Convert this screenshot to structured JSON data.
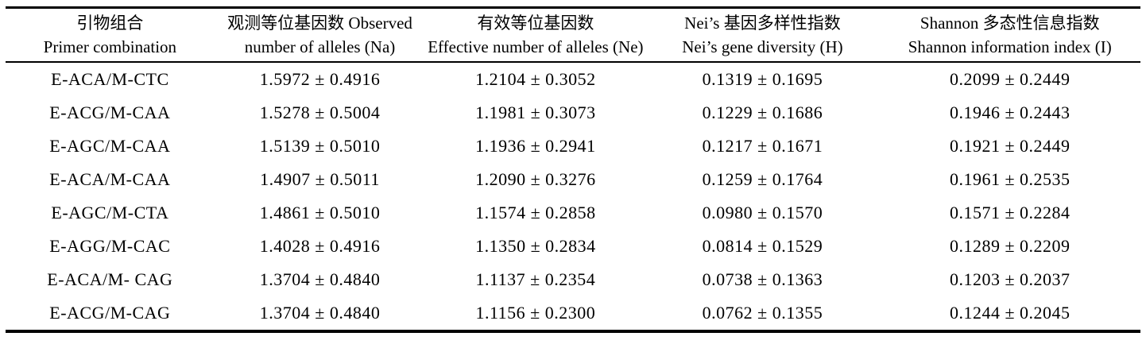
{
  "table": {
    "columns": [
      {
        "zh": "引物组合",
        "en": "Primer combination"
      },
      {
        "zh": "观测等位基因数 Observed",
        "en": "number of alleles (Na)"
      },
      {
        "zh": "有效等位基因数",
        "en": "Effective number of alleles (Ne)"
      },
      {
        "zh": "Nei’s 基因多样性指数",
        "en": "Nei’s gene diversity (H)"
      },
      {
        "zh": "Shannon 多态性信息指数",
        "en": "Shannon information index (I)"
      }
    ],
    "rows": [
      [
        "E-ACA/M-CTC",
        "1.5972 ± 0.4916",
        "1.2104 ± 0.3052",
        "0.1319 ± 0.1695",
        "0.2099 ± 0.2449"
      ],
      [
        "E-ACG/M-CAA",
        "1.5278 ± 0.5004",
        "1.1981 ± 0.3073",
        "0.1229 ± 0.1686",
        "0.1946 ± 0.2443"
      ],
      [
        "E-AGC/M-CAA",
        "1.5139 ± 0.5010",
        "1.1936 ± 0.2941",
        "0.1217 ± 0.1671",
        "0.1921 ± 0.2449"
      ],
      [
        "E-ACA/M-CAA",
        "1.4907 ± 0.5011",
        "1.2090 ± 0.3276",
        "0.1259 ± 0.1764",
        "0.1961 ± 0.2535"
      ],
      [
        "E-AGC/M-CTA",
        "1.4861 ± 0.5010",
        "1.1574 ± 0.2858",
        "0.0980 ± 0.1570",
        "0.1571 ± 0.2284"
      ],
      [
        "E-AGG/M-CAC",
        "1.4028 ± 0.4916",
        "1.1350 ± 0.2834",
        "0.0814 ± 0.1529",
        "0.1289 ± 0.2209"
      ],
      [
        "E-ACA/M- CAG",
        "1.3704 ± 0.4840",
        "1.1137 ± 0.2354",
        "0.0738 ± 0.1363",
        "0.1203 ± 0.2037"
      ],
      [
        "E-ACG/M-CAG",
        "1.3704 ± 0.4840",
        "1.1156 ± 0.2300",
        "0.0762 ± 0.1355",
        "0.1244 ± 0.2045"
      ]
    ]
  },
  "colors": {
    "text": "#000000",
    "rule": "#000000",
    "background": "#ffffff"
  }
}
